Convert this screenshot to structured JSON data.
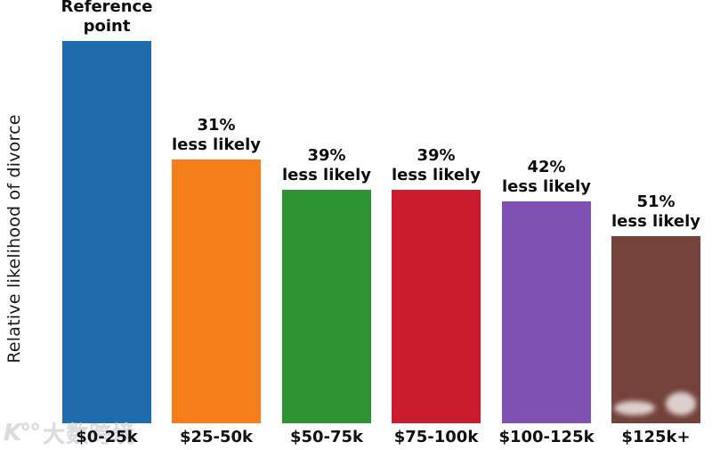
{
  "chart_data": {
    "type": "bar",
    "title": "",
    "xlabel": "",
    "ylabel": "Relative likelihood of divorce",
    "categories": [
      "$0-25k",
      "$25-50k",
      "$50-75k",
      "$75-100k",
      "$100-125k",
      "$125k+"
    ],
    "values": [
      1.0,
      0.69,
      0.61,
      0.61,
      0.58,
      0.49
    ],
    "bar_colors": [
      "#1f6cad",
      "#f57d1a",
      "#2d9232",
      "#cb1b2e",
      "#7e51b2",
      "#75423a"
    ],
    "annotations": [
      {
        "line1": "Reference",
        "line2": "point"
      },
      {
        "line1": "31%",
        "line2": "less likely"
      },
      {
        "line1": "39%",
        "line2": "less likely"
      },
      {
        "line1": "39%",
        "line2": "less likely"
      },
      {
        "line1": "42%",
        "line2": "less likely"
      },
      {
        "line1": "51%",
        "line2": "less likely"
      }
    ],
    "ylim": [
      0,
      1.08
    ],
    "grid": false,
    "legend": "none",
    "axis_lines": "none"
  },
  "watermark": {
    "logo": "K°°",
    "text": "大数跨境"
  }
}
